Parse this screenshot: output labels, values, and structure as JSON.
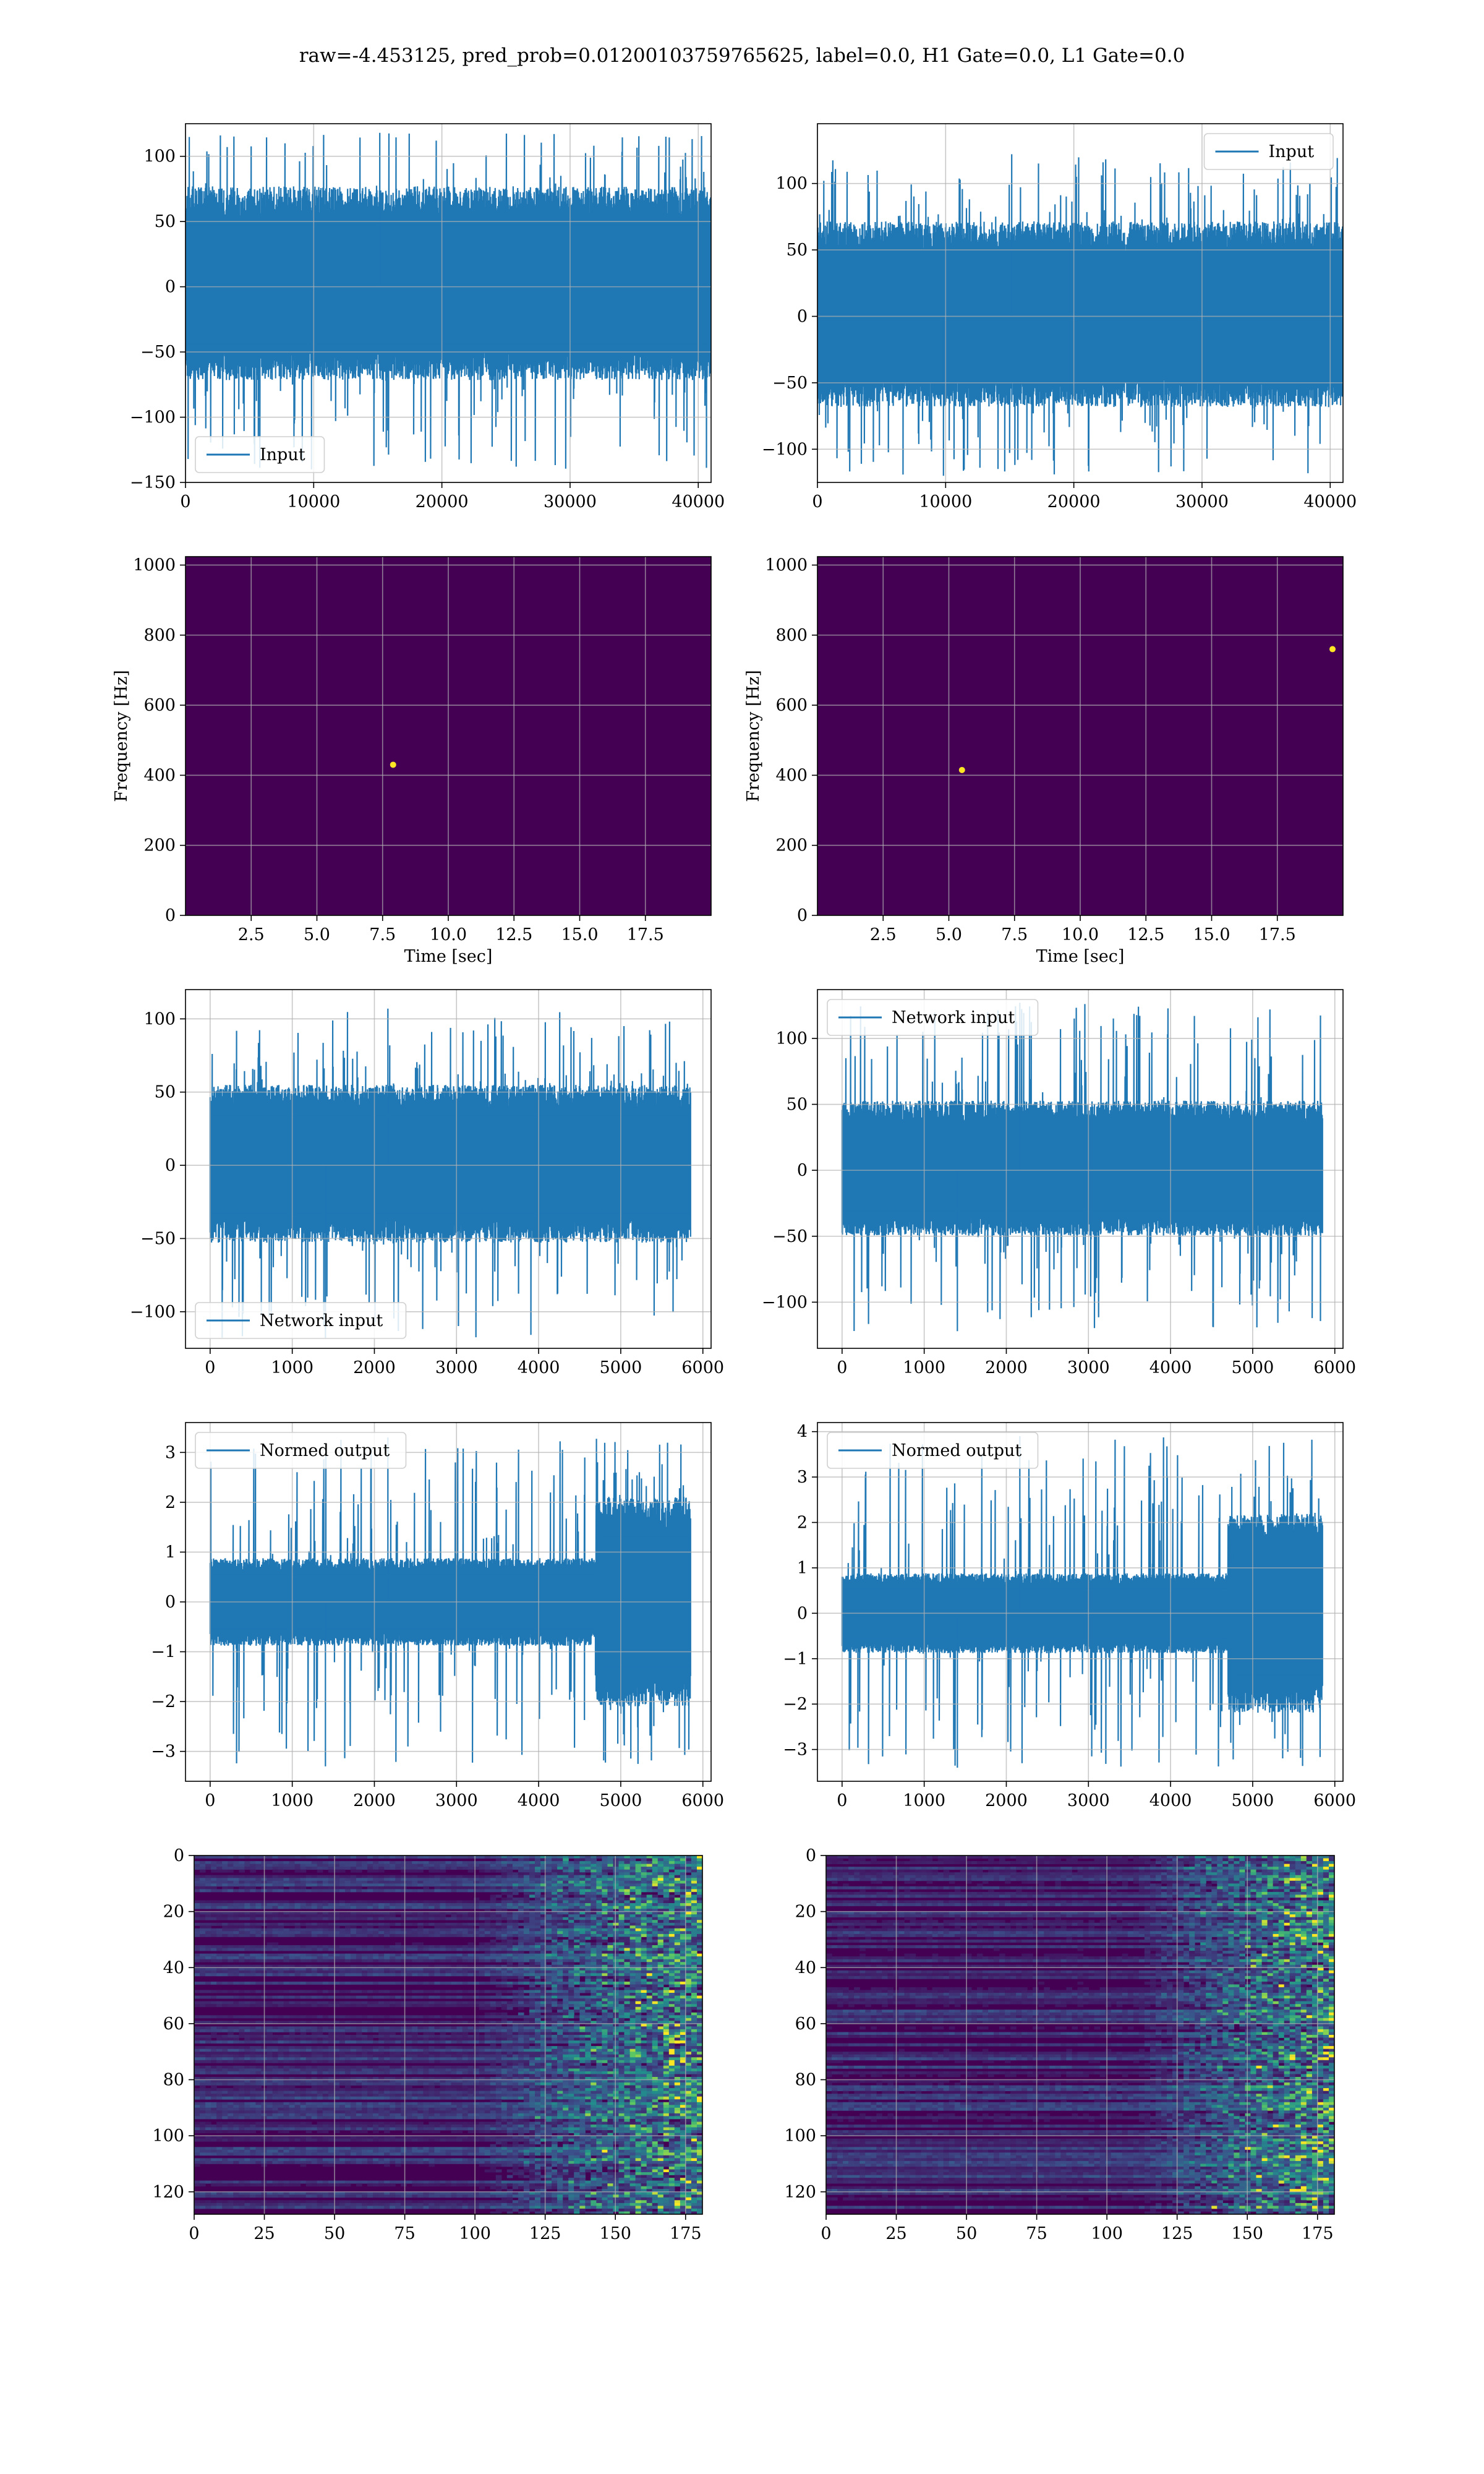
{
  "figure": {
    "suptitle": "raw=-4.453125, pred_prob=0.01200103759765625, label=0.0, H1 Gate=0.0, L1 Gate=0.0"
  },
  "colors": {
    "line": "#1f77b4",
    "viridis_low": "#440154",
    "viridis_mid": "#21918c",
    "viridis_high": "#fde725",
    "grid": "#b0b0b0"
  },
  "chart_data": [
    {
      "id": "raw-h1",
      "type": "line",
      "title": "",
      "xlabel": "",
      "ylabel": "",
      "legend": {
        "label": "Input",
        "loc": "lower-left"
      },
      "xlim": [
        0,
        41000
      ],
      "ylim": [
        -150,
        125
      ],
      "xticks": [
        0,
        10000,
        20000,
        30000,
        40000
      ],
      "xticklabels": [
        "0",
        "10000",
        "20000",
        "30000",
        "40000"
      ],
      "yticks": [
        -150,
        -100,
        -50,
        0,
        50,
        100
      ],
      "yticklabels": [
        "−150",
        "−100",
        "−50",
        "0",
        "50",
        "100"
      ],
      "series": [
        {
          "name": "Input",
          "x_range": [
            0,
            40960
          ],
          "band": [
            -65,
            70
          ],
          "peak_min": -140,
          "peak_max": 118
        }
      ],
      "grid": true
    },
    {
      "id": "raw-l1",
      "type": "line",
      "title": "",
      "xlabel": "",
      "ylabel": "",
      "legend": {
        "label": "Input",
        "loc": "upper-right"
      },
      "xlim": [
        0,
        41000
      ],
      "ylim": [
        -125,
        145
      ],
      "xticks": [
        0,
        10000,
        20000,
        30000,
        40000
      ],
      "xticklabels": [
        "0",
        "10000",
        "20000",
        "30000",
        "40000"
      ],
      "yticks": [
        -100,
        -50,
        0,
        50,
        100
      ],
      "yticklabels": [
        "−100",
        "−50",
        "0",
        "50",
        "100"
      ],
      "series": [
        {
          "name": "Input",
          "x_range": [
            0,
            40960
          ],
          "band": [
            -62,
            65
          ],
          "peak_min": -120,
          "peak_max": 122
        }
      ],
      "grid": true
    },
    {
      "id": "spec-h1",
      "type": "heatmap",
      "title": "",
      "xlabel": "Time [sec]",
      "ylabel": "Frequency [Hz]",
      "xlim": [
        0,
        20
      ],
      "ylim": [
        0,
        1024
      ],
      "xticks": [
        2.5,
        5.0,
        7.5,
        10.0,
        12.5,
        15.0,
        17.5
      ],
      "xticklabels": [
        "2.5",
        "5.0",
        "7.5",
        "10.0",
        "12.5",
        "15.0",
        "17.5"
      ],
      "yticks": [
        0,
        200,
        400,
        600,
        800,
        1000
      ],
      "yticklabels": [
        "0",
        "200",
        "400",
        "600",
        "800",
        "1000"
      ],
      "hotspots": [
        {
          "x": 7.9,
          "y": 430
        }
      ],
      "dark_band": [
        480,
        520
      ],
      "grid": true
    },
    {
      "id": "spec-l1",
      "type": "heatmap",
      "title": "",
      "xlabel": "Time [sec]",
      "ylabel": "Frequency [Hz]",
      "xlim": [
        0,
        20
      ],
      "ylim": [
        0,
        1024
      ],
      "xticks": [
        2.5,
        5.0,
        7.5,
        10.0,
        12.5,
        15.0,
        17.5
      ],
      "xticklabels": [
        "2.5",
        "5.0",
        "7.5",
        "10.0",
        "12.5",
        "15.0",
        "17.5"
      ],
      "yticks": [
        0,
        200,
        400,
        600,
        800,
        1000
      ],
      "yticklabels": [
        "0",
        "200",
        "400",
        "600",
        "800",
        "1000"
      ],
      "hotspots": [
        {
          "x": 5.5,
          "y": 415
        },
        {
          "x": 19.6,
          "y": 760
        }
      ],
      "dark_band": [
        480,
        520
      ],
      "grid": true
    },
    {
      "id": "net-h1",
      "type": "line",
      "title": "",
      "xlabel": "",
      "ylabel": "",
      "legend": {
        "label": "Network input",
        "loc": "lower-left"
      },
      "xlim": [
        -300,
        6100
      ],
      "ylim": [
        -125,
        120
      ],
      "xticks": [
        0,
        1000,
        2000,
        3000,
        4000,
        5000,
        6000
      ],
      "xticklabels": [
        "0",
        "1000",
        "2000",
        "3000",
        "4000",
        "5000",
        "6000"
      ],
      "yticks": [
        -100,
        -50,
        0,
        50,
        100
      ],
      "yticklabels": [
        "−100",
        "−50",
        "0",
        "50",
        "100"
      ],
      "series": [
        {
          "name": "Network input",
          "x_range": [
            0,
            5850
          ],
          "band": [
            -48,
            50
          ],
          "peak_min": -118,
          "peak_max": 107
        }
      ],
      "grid": true
    },
    {
      "id": "net-l1",
      "type": "line",
      "title": "",
      "xlabel": "",
      "ylabel": "",
      "legend": {
        "label": "Network input",
        "loc": "upper-left"
      },
      "xlim": [
        -300,
        6100
      ],
      "ylim": [
        -135,
        137
      ],
      "xticks": [
        0,
        1000,
        2000,
        3000,
        4000,
        5000,
        6000
      ],
      "xticklabels": [
        "0",
        "1000",
        "2000",
        "3000",
        "4000",
        "5000",
        "6000"
      ],
      "yticks": [
        -100,
        -50,
        0,
        50,
        100
      ],
      "yticklabels": [
        "−100",
        "−50",
        "0",
        "50",
        "100"
      ],
      "series": [
        {
          "name": "Network input",
          "x_range": [
            0,
            5850
          ],
          "band": [
            -45,
            48
          ],
          "peak_min": -122,
          "peak_max": 127
        }
      ],
      "grid": true
    },
    {
      "id": "norm-h1",
      "type": "line",
      "title": "",
      "xlabel": "",
      "ylabel": "",
      "legend": {
        "label": "Normed output",
        "loc": "upper-left"
      },
      "xlim": [
        -300,
        6100
      ],
      "ylim": [
        -3.6,
        3.6
      ],
      "xticks": [
        0,
        1000,
        2000,
        3000,
        4000,
        5000,
        6000
      ],
      "xticklabels": [
        "0",
        "1000",
        "2000",
        "3000",
        "4000",
        "5000",
        "6000"
      ],
      "yticks": [
        -3,
        -2,
        -1,
        0,
        1,
        2,
        3
      ],
      "yticklabels": [
        "−3",
        "−2",
        "−1",
        "0",
        "1",
        "2",
        "3"
      ],
      "series": [
        {
          "name": "Normed output",
          "x_range": [
            0,
            5850
          ],
          "band": [
            -0.8,
            0.8
          ],
          "peak_min": -3.3,
          "peak_max": 3.3,
          "burst_start": 4700,
          "burst_scale": 2.4
        }
      ],
      "grid": true
    },
    {
      "id": "norm-l1",
      "type": "line",
      "title": "",
      "xlabel": "",
      "ylabel": "",
      "legend": {
        "label": "Normed output",
        "loc": "upper-left"
      },
      "xlim": [
        -300,
        6100
      ],
      "ylim": [
        -3.7,
        4.2
      ],
      "xticks": [
        0,
        1000,
        2000,
        3000,
        4000,
        5000,
        6000
      ],
      "xticklabels": [
        "0",
        "1000",
        "2000",
        "3000",
        "4000",
        "5000",
        "6000"
      ],
      "yticks": [
        -3,
        -2,
        -1,
        0,
        1,
        2,
        3,
        4
      ],
      "yticklabels": [
        "−3",
        "−2",
        "−1",
        "0",
        "1",
        "2",
        "3",
        "4"
      ],
      "series": [
        {
          "name": "Normed output",
          "x_range": [
            0,
            5850
          ],
          "band": [
            -0.8,
            0.8
          ],
          "peak_min": -3.4,
          "peak_max": 3.9,
          "burst_start": 4700,
          "burst_scale": 2.5
        }
      ],
      "grid": true
    },
    {
      "id": "feat-h1",
      "type": "heatmap",
      "title": "",
      "xlabel": "",
      "ylabel": "",
      "xlim": [
        0,
        181
      ],
      "ylim": [
        128,
        0
      ],
      "xticks": [
        0,
        25,
        50,
        75,
        100,
        125,
        150,
        175
      ],
      "xticklabels": [
        "0",
        "25",
        "50",
        "75",
        "100",
        "125",
        "150",
        "175"
      ],
      "yticks": [
        0,
        20,
        40,
        60,
        80,
        100,
        120
      ],
      "yticklabels": [
        "0",
        "20",
        "40",
        "60",
        "80",
        "100",
        "120"
      ],
      "rows": 128,
      "cols": 181,
      "activity_onset": 100,
      "grid": true
    },
    {
      "id": "feat-l1",
      "type": "heatmap",
      "title": "",
      "xlabel": "",
      "ylabel": "",
      "xlim": [
        0,
        181
      ],
      "ylim": [
        128,
        0
      ],
      "xticks": [
        0,
        25,
        50,
        75,
        100,
        125,
        150,
        175
      ],
      "xticklabels": [
        "0",
        "25",
        "50",
        "75",
        "100",
        "125",
        "150",
        "175"
      ],
      "yticks": [
        0,
        20,
        40,
        60,
        80,
        100,
        120
      ],
      "yticklabels": [
        "0",
        "20",
        "40",
        "60",
        "80",
        "100",
        "120"
      ],
      "rows": 128,
      "cols": 181,
      "activity_onset": 110,
      "grid": true
    }
  ]
}
